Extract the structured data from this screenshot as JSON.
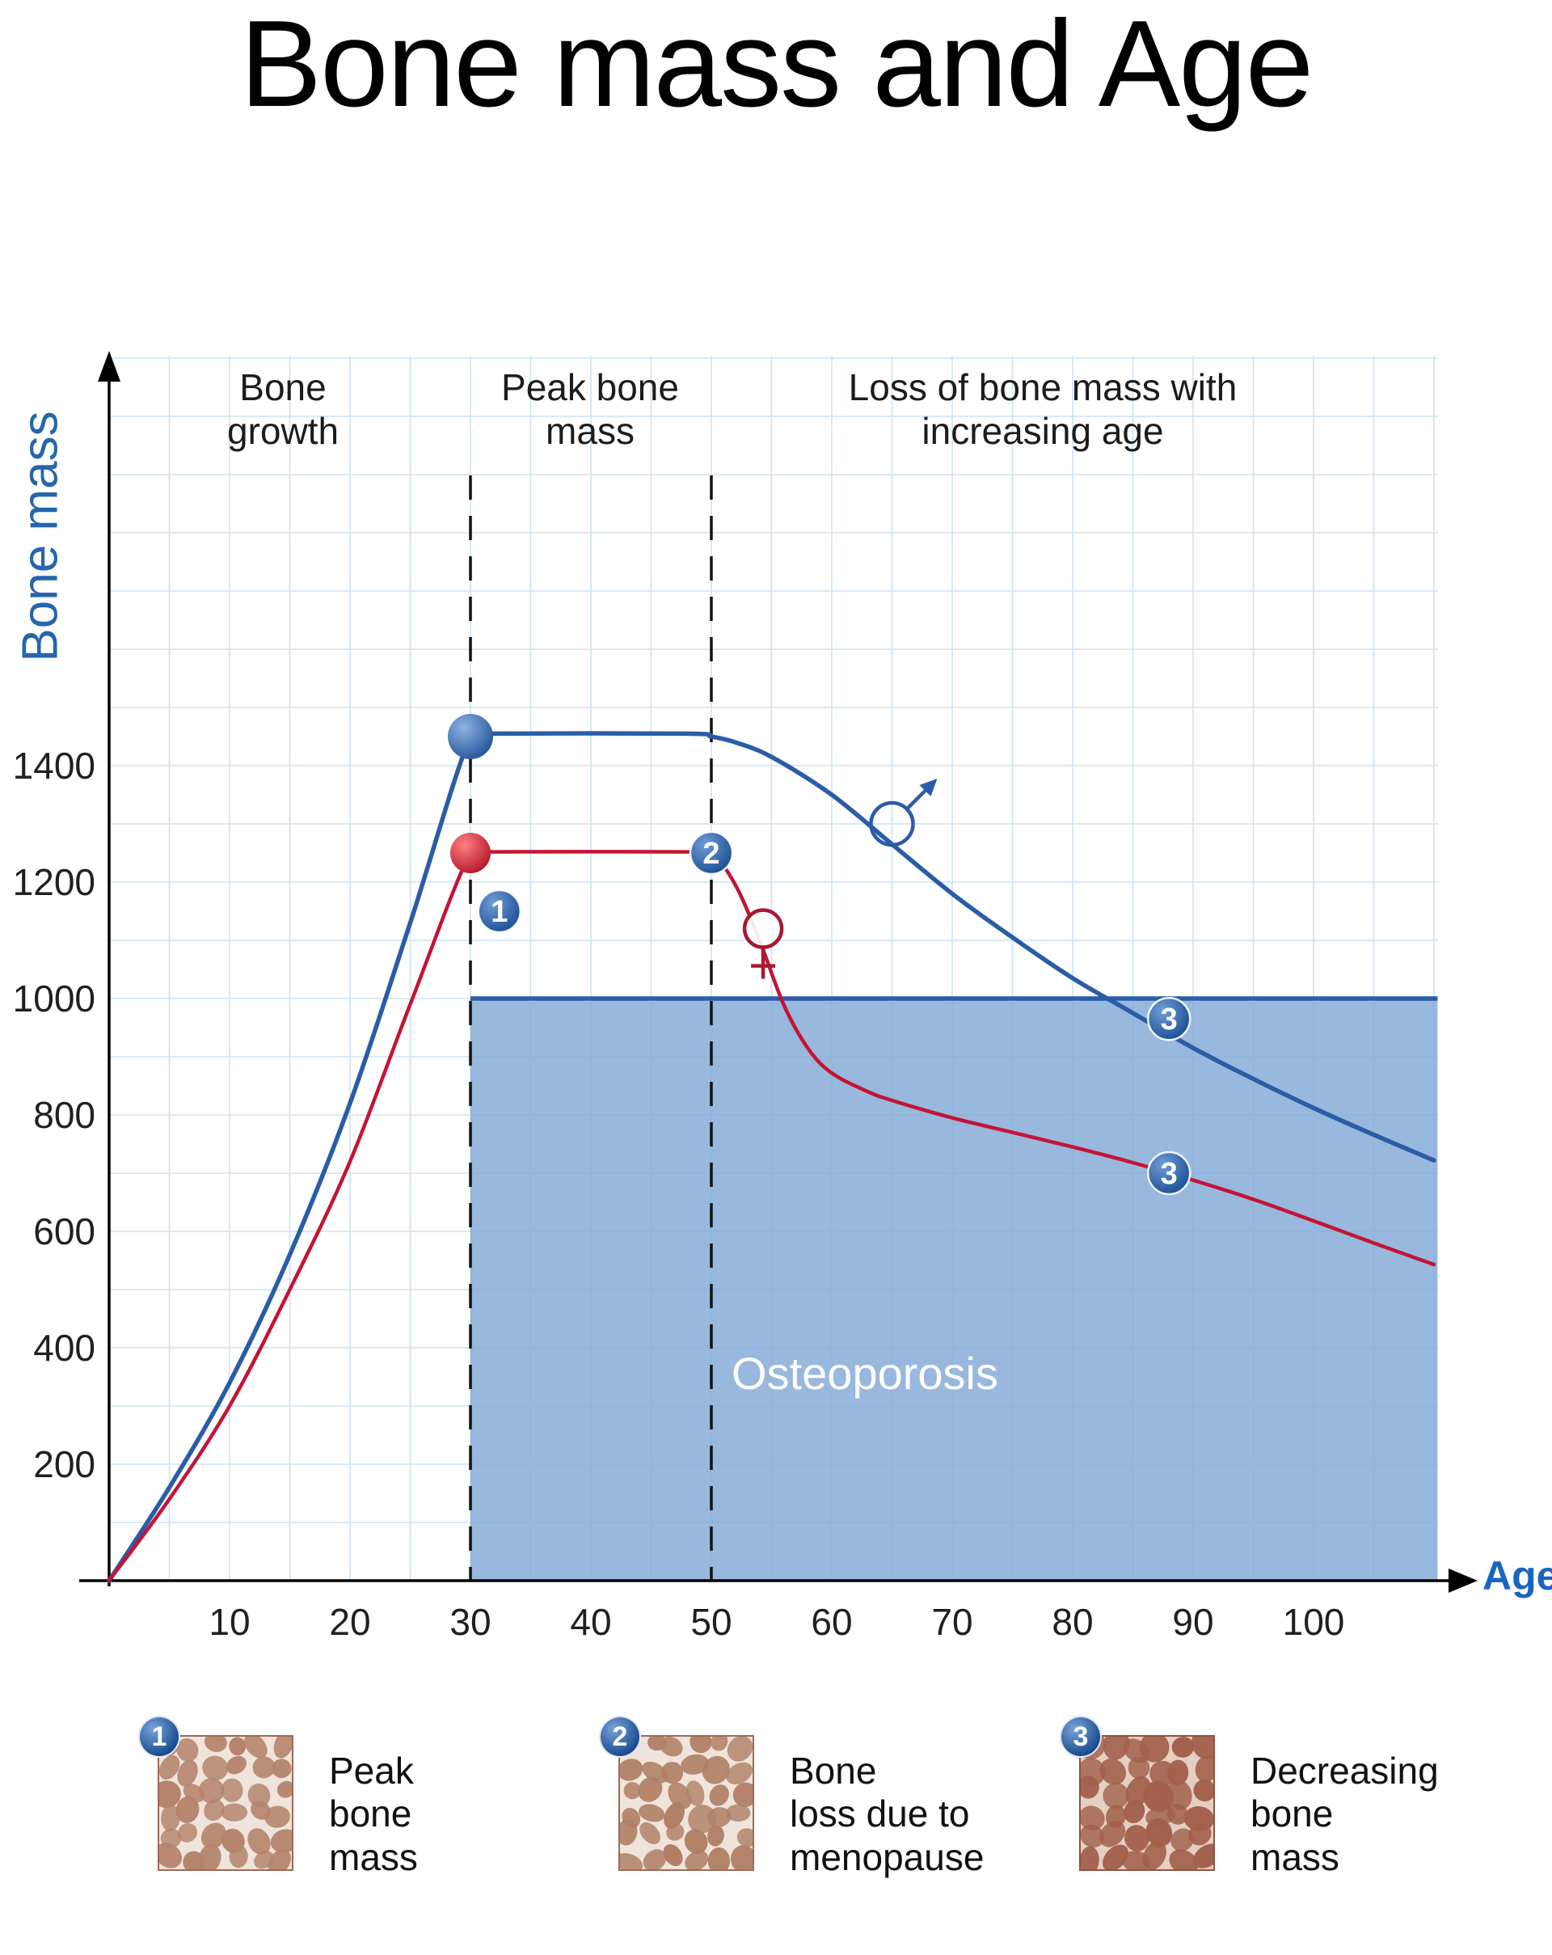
{
  "title": "Bone mass and Age",
  "axes": {
    "x_label": "Age",
    "y_label": "Bone mass",
    "x_ticks": [
      10,
      20,
      30,
      40,
      50,
      60,
      70,
      80,
      90,
      100
    ],
    "y_ticks": [
      200,
      400,
      600,
      800,
      1000,
      1200,
      1400
    ]
  },
  "osteoporosis_label": "Osteoporosis",
  "colors": {
    "men_line": "#2a5ca8",
    "women_line": "#c41435",
    "women_symbol": "#a81830",
    "axis_label_blue": "#1b64c0",
    "grid": "#cde3f2",
    "osteoporosis_fill": "#86abd7",
    "badge_dark": "#16498e",
    "badge_light": "#7aa3d8"
  },
  "legend": [
    {
      "number": "1",
      "label": "Peak\nbone\nmass",
      "texture": {
        "bg": "#efe4db",
        "blob": "#b5836b",
        "border": "#9c6a55"
      }
    },
    {
      "number": "2",
      "label": "Bone\nloss due to\nmenopause",
      "texture": {
        "bg": "#efe4db",
        "blob": "#b08066",
        "border": "#9c6a55"
      }
    },
    {
      "number": "3",
      "label": "Decreasing\nbone\nmass",
      "texture": {
        "bg": "#e4cfc2",
        "blob": "#a2604b",
        "border": "#8d5440"
      }
    }
  ],
  "chart_data": {
    "type": "line",
    "title": "Bone mass and Age",
    "xlabel": "Age",
    "ylabel": "Bone mass",
    "xlim": [
      0,
      110
    ],
    "ylim": [
      0,
      2100
    ],
    "x_ticks": [
      10,
      20,
      30,
      40,
      50,
      60,
      70,
      80,
      90,
      100
    ],
    "y_ticks": [
      200,
      400,
      600,
      800,
      1000,
      1200,
      1400
    ],
    "grid": true,
    "series": [
      {
        "name": "men",
        "color": "#2a5ca8",
        "x": [
          0,
          5,
          10,
          15,
          20,
          25,
          30,
          32,
          48,
          50,
          52,
          55,
          60,
          65,
          70,
          75,
          80,
          85,
          90,
          95,
          100,
          105,
          110
        ],
        "y": [
          0,
          160,
          340,
          560,
          820,
          1130,
          1450,
          1455,
          1455,
          1450,
          1440,
          1415,
          1350,
          1265,
          1180,
          1105,
          1035,
          975,
          915,
          862,
          812,
          766,
          722
        ]
      },
      {
        "name": "women",
        "color": "#c41435",
        "x": [
          0,
          5,
          10,
          15,
          20,
          25,
          30,
          32,
          48,
          50,
          52,
          54,
          56,
          58,
          60,
          63,
          65,
          70,
          75,
          80,
          85,
          90,
          95,
          100,
          105,
          110
        ],
        "y": [
          0,
          140,
          300,
          500,
          720,
          990,
          1250,
          1252,
          1252,
          1250,
          1195,
          1100,
          990,
          915,
          872,
          840,
          825,
          795,
          770,
          745,
          718,
          688,
          655,
          618,
          580,
          543
        ]
      }
    ],
    "dashed_lines_x": [
      30,
      50
    ],
    "osteoporosis": {
      "label": "Osteoporosis",
      "age_start": 30,
      "age_end": 110.3,
      "value_top": 1000
    },
    "region_bands": [
      {
        "label": "Bone\ngrowth",
        "x_range": [
          0,
          30
        ]
      },
      {
        "label": "Peak bone\nmass",
        "x_range": [
          30,
          50
        ]
      },
      {
        "label": "Loss of bone mass with\nincreasing age",
        "x_range": [
          50,
          110
        ]
      }
    ],
    "markers": [
      {
        "name": "peak-dot-men",
        "type": "dot",
        "age": 30,
        "value": 1450,
        "r": 28,
        "fill": "grad-blue"
      },
      {
        "name": "peak-dot-women",
        "type": "dot",
        "age": 30,
        "value": 1250,
        "r": 25,
        "fill": "grad-red"
      },
      {
        "name": "badge-1",
        "type": "badge",
        "label": "1",
        "age": 32.4,
        "value": 1150
      },
      {
        "name": "badge-2",
        "type": "badge",
        "label": "2",
        "age": 50,
        "value": 1250
      },
      {
        "name": "badge-3-men",
        "type": "badge",
        "label": "3",
        "age": 88,
        "value": 965
      },
      {
        "name": "badge-3-women",
        "type": "badge",
        "label": "3",
        "age": 88,
        "value": 700
      },
      {
        "name": "male-symbol",
        "type": "male",
        "age": 65,
        "value": 1300
      },
      {
        "name": "female-symbol",
        "type": "female",
        "age": 54.3,
        "value": 1120
      }
    ]
  }
}
